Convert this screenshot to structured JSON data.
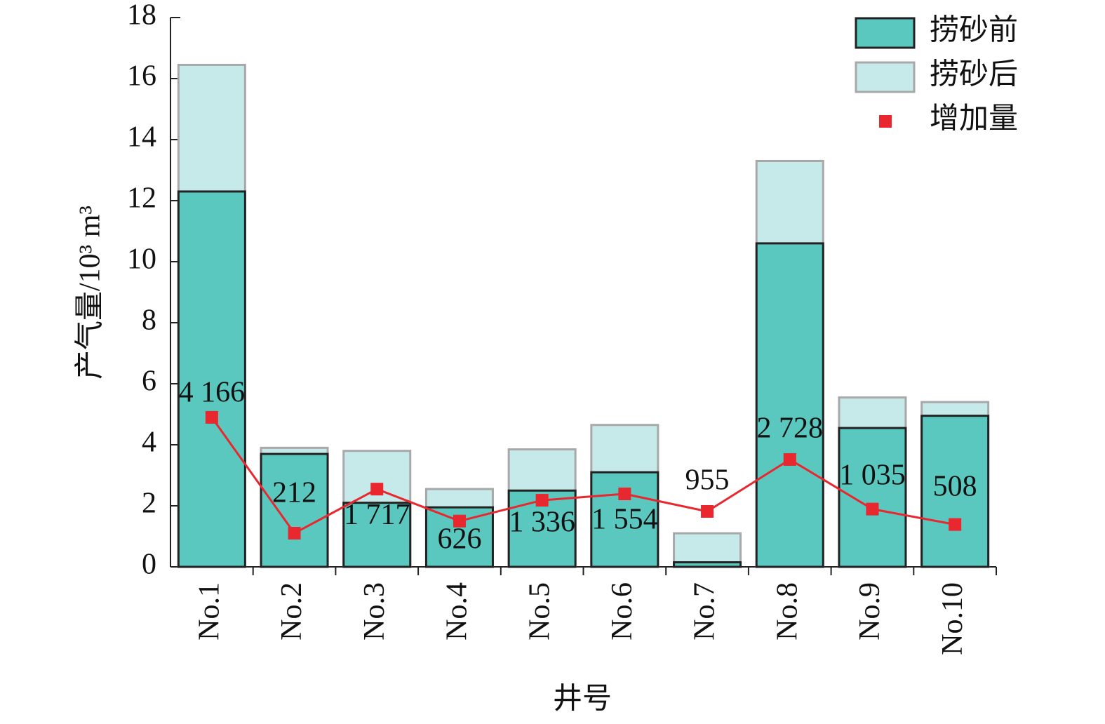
{
  "chart_data": {
    "type": "bar_line",
    "x_label": "井号",
    "y_label": "产气量/10³ m³",
    "categories": [
      "No.1",
      "No.2",
      "No.3",
      "No.4",
      "No.5",
      "No.6",
      "No.7",
      "No.8",
      "No.9",
      "No.10"
    ],
    "series": [
      {
        "name": "捞砂后",
        "color": "#c6eaea",
        "values": [
          16.45,
          3.9,
          3.8,
          2.55,
          3.85,
          4.65,
          1.1,
          13.3,
          5.55,
          5.4
        ]
      },
      {
        "name": "捞砂前",
        "color": "#5ac8be",
        "values": [
          12.3,
          3.7,
          2.1,
          1.95,
          2.5,
          3.1,
          0.15,
          10.6,
          4.55,
          4.95
        ]
      },
      {
        "name": "增加量",
        "color": "#e8272e",
        "axis": "y2",
        "type": "line",
        "values": [
          4166,
          212,
          1717,
          626,
          1336,
          1554,
          955,
          2728,
          1035,
          508
        ],
        "value_labels": [
          "4 166",
          "212",
          "1 717",
          "626",
          "1 336",
          "1 554",
          "955",
          "2 728",
          "1 035",
          "508"
        ]
      }
    ],
    "ylim": [
      0,
      18
    ],
    "yticks": [
      0,
      2,
      4,
      6,
      8,
      10,
      12,
      14,
      16,
      18
    ],
    "y2lim": [
      -937,
      17813
    ],
    "legend": "upper right"
  }
}
